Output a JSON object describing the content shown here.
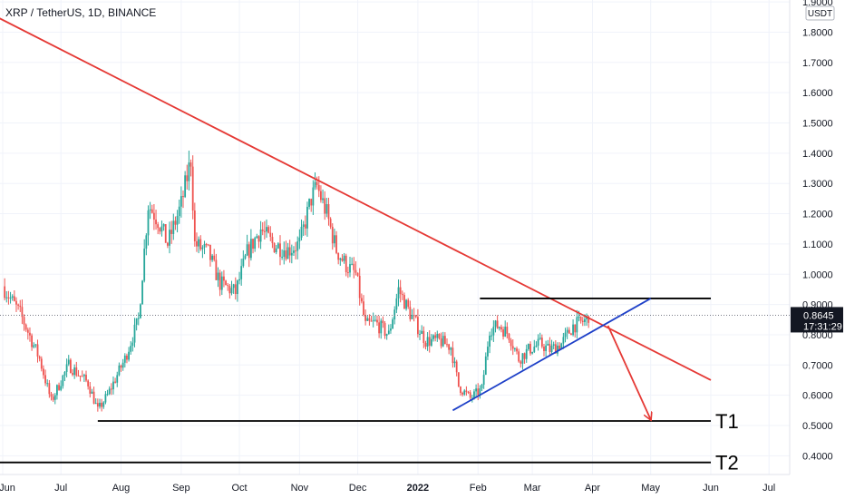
{
  "title": "XRP / TetherUS, 1D, BINANCE",
  "chart_data": {
    "type": "candlestick",
    "currency": "USDT",
    "y_ticks": [
      "1.9000",
      "1.8000",
      "1.7000",
      "1.6000",
      "1.5000",
      "1.4000",
      "1.3000",
      "1.2000",
      "1.1000",
      "1.0000",
      "0.9000",
      "0.8000",
      "0.7000",
      "0.6000",
      "0.5000",
      "0.4000"
    ],
    "ylim": [
      0.37,
      1.92
    ],
    "x_ticks": [
      {
        "label": "Jun",
        "date": "2021-06-01",
        "bold": false
      },
      {
        "label": "Jul",
        "date": "2021-07-01",
        "bold": false
      },
      {
        "label": "Aug",
        "date": "2021-08-01",
        "bold": false
      },
      {
        "label": "Sep",
        "date": "2021-09-01",
        "bold": false
      },
      {
        "label": "Oct",
        "date": "2021-10-01",
        "bold": false
      },
      {
        "label": "Nov",
        "date": "2021-11-01",
        "bold": false
      },
      {
        "label": "Dec",
        "date": "2021-12-01",
        "bold": false
      },
      {
        "label": "2022",
        "date": "2022-01-01",
        "bold": true
      },
      {
        "label": "Feb",
        "date": "2022-02-01",
        "bold": false
      },
      {
        "label": "Mar",
        "date": "2022-03-01",
        "bold": false
      },
      {
        "label": "Apr",
        "date": "2022-04-01",
        "bold": false
      },
      {
        "label": "May",
        "date": "2022-05-01",
        "bold": false
      },
      {
        "label": "Jun",
        "date": "2022-06-01",
        "bold": false
      },
      {
        "label": "Jul",
        "date": "2022-07-01",
        "bold": false
      }
    ],
    "price_path": [
      [
        "2021-06-01",
        0.96
      ],
      [
        "2021-06-10",
        0.87
      ],
      [
        "2021-06-20",
        0.72
      ],
      [
        "2021-06-26",
        0.58
      ],
      [
        "2021-07-05",
        0.7
      ],
      [
        "2021-07-15",
        0.64
      ],
      [
        "2021-07-20",
        0.55
      ],
      [
        "2021-07-25",
        0.6
      ],
      [
        "2021-08-03",
        0.72
      ],
      [
        "2021-08-10",
        0.85
      ],
      [
        "2021-08-15",
        1.23
      ],
      [
        "2021-08-20",
        1.18
      ],
      [
        "2021-08-25",
        1.1
      ],
      [
        "2021-09-01",
        1.23
      ],
      [
        "2021-09-06",
        1.38
      ],
      [
        "2021-09-08",
        1.1
      ],
      [
        "2021-09-15",
        1.07
      ],
      [
        "2021-09-21",
        0.97
      ],
      [
        "2021-09-29",
        0.94
      ],
      [
        "2021-10-05",
        1.07
      ],
      [
        "2021-10-12",
        1.15
      ],
      [
        "2021-10-18",
        1.1
      ],
      [
        "2021-10-26",
        1.08
      ],
      [
        "2021-11-01",
        1.1
      ],
      [
        "2021-11-07",
        1.25
      ],
      [
        "2021-11-10",
        1.29
      ],
      [
        "2021-11-15",
        1.2
      ],
      [
        "2021-11-20",
        1.08
      ],
      [
        "2021-11-25",
        1.03
      ],
      [
        "2021-11-30",
        1.0
      ],
      [
        "2021-12-05",
        0.83
      ],
      [
        "2021-12-10",
        0.84
      ],
      [
        "2021-12-17",
        0.8
      ],
      [
        "2021-12-22",
        0.95
      ],
      [
        "2021-12-28",
        0.87
      ],
      [
        "2022-01-05",
        0.78
      ],
      [
        "2022-01-12",
        0.78
      ],
      [
        "2022-01-18",
        0.76
      ],
      [
        "2022-01-22",
        0.63
      ],
      [
        "2022-01-28",
        0.59
      ],
      [
        "2022-02-03",
        0.62
      ],
      [
        "2022-02-07",
        0.82
      ],
      [
        "2022-02-12",
        0.83
      ],
      [
        "2022-02-17",
        0.8
      ],
      [
        "2022-02-22",
        0.72
      ],
      [
        "2022-02-27",
        0.75
      ],
      [
        "2022-03-05",
        0.77
      ],
      [
        "2022-03-10",
        0.75
      ],
      [
        "2022-03-16",
        0.77
      ],
      [
        "2022-03-22",
        0.83
      ],
      [
        "2022-03-26",
        0.84
      ],
      [
        "2022-03-29",
        0.85
      ],
      [
        "2022-03-30",
        0.8645
      ]
    ],
    "current_price": {
      "label": "0.8645",
      "value": 0.8645,
      "countdown": "17:31:29"
    },
    "drawings": [
      {
        "name": "descending-resistance-line",
        "color": "#e53935",
        "from": [
          "2021-05-26",
          1.86
        ],
        "to": [
          "2022-06-01",
          0.65
        ]
      },
      {
        "name": "triangle-top-line",
        "color": "#000000",
        "from": [
          "2022-02-02",
          0.92
        ],
        "to": [
          "2022-06-01",
          0.92
        ]
      },
      {
        "name": "triangle-rising-support-line",
        "color": "#1e40c8",
        "from": [
          "2022-01-19",
          0.55
        ],
        "to": [
          "2022-05-01",
          0.92
        ]
      },
      {
        "name": "support-line-t1",
        "color": "#000000",
        "from": [
          "2021-07-20",
          0.515
        ],
        "to": [
          "2022-06-01",
          0.515
        ]
      },
      {
        "name": "support-line-t2",
        "color": "#000000",
        "from": [
          "2021-05-26",
          0.378
        ],
        "to": [
          "2022-06-01",
          0.378
        ]
      },
      {
        "name": "projection-arrow",
        "color": "#e53935",
        "from": [
          "2022-04-09",
          0.83
        ],
        "to": [
          "2022-05-01",
          0.52
        ]
      }
    ],
    "target_labels": [
      {
        "label": "T1",
        "price": 0.515
      },
      {
        "label": "T2",
        "price": 0.378
      }
    ],
    "colors": {
      "up": "#26a69a",
      "down": "#ef5350",
      "grid": "#f0f3fa"
    },
    "grid": true
  }
}
